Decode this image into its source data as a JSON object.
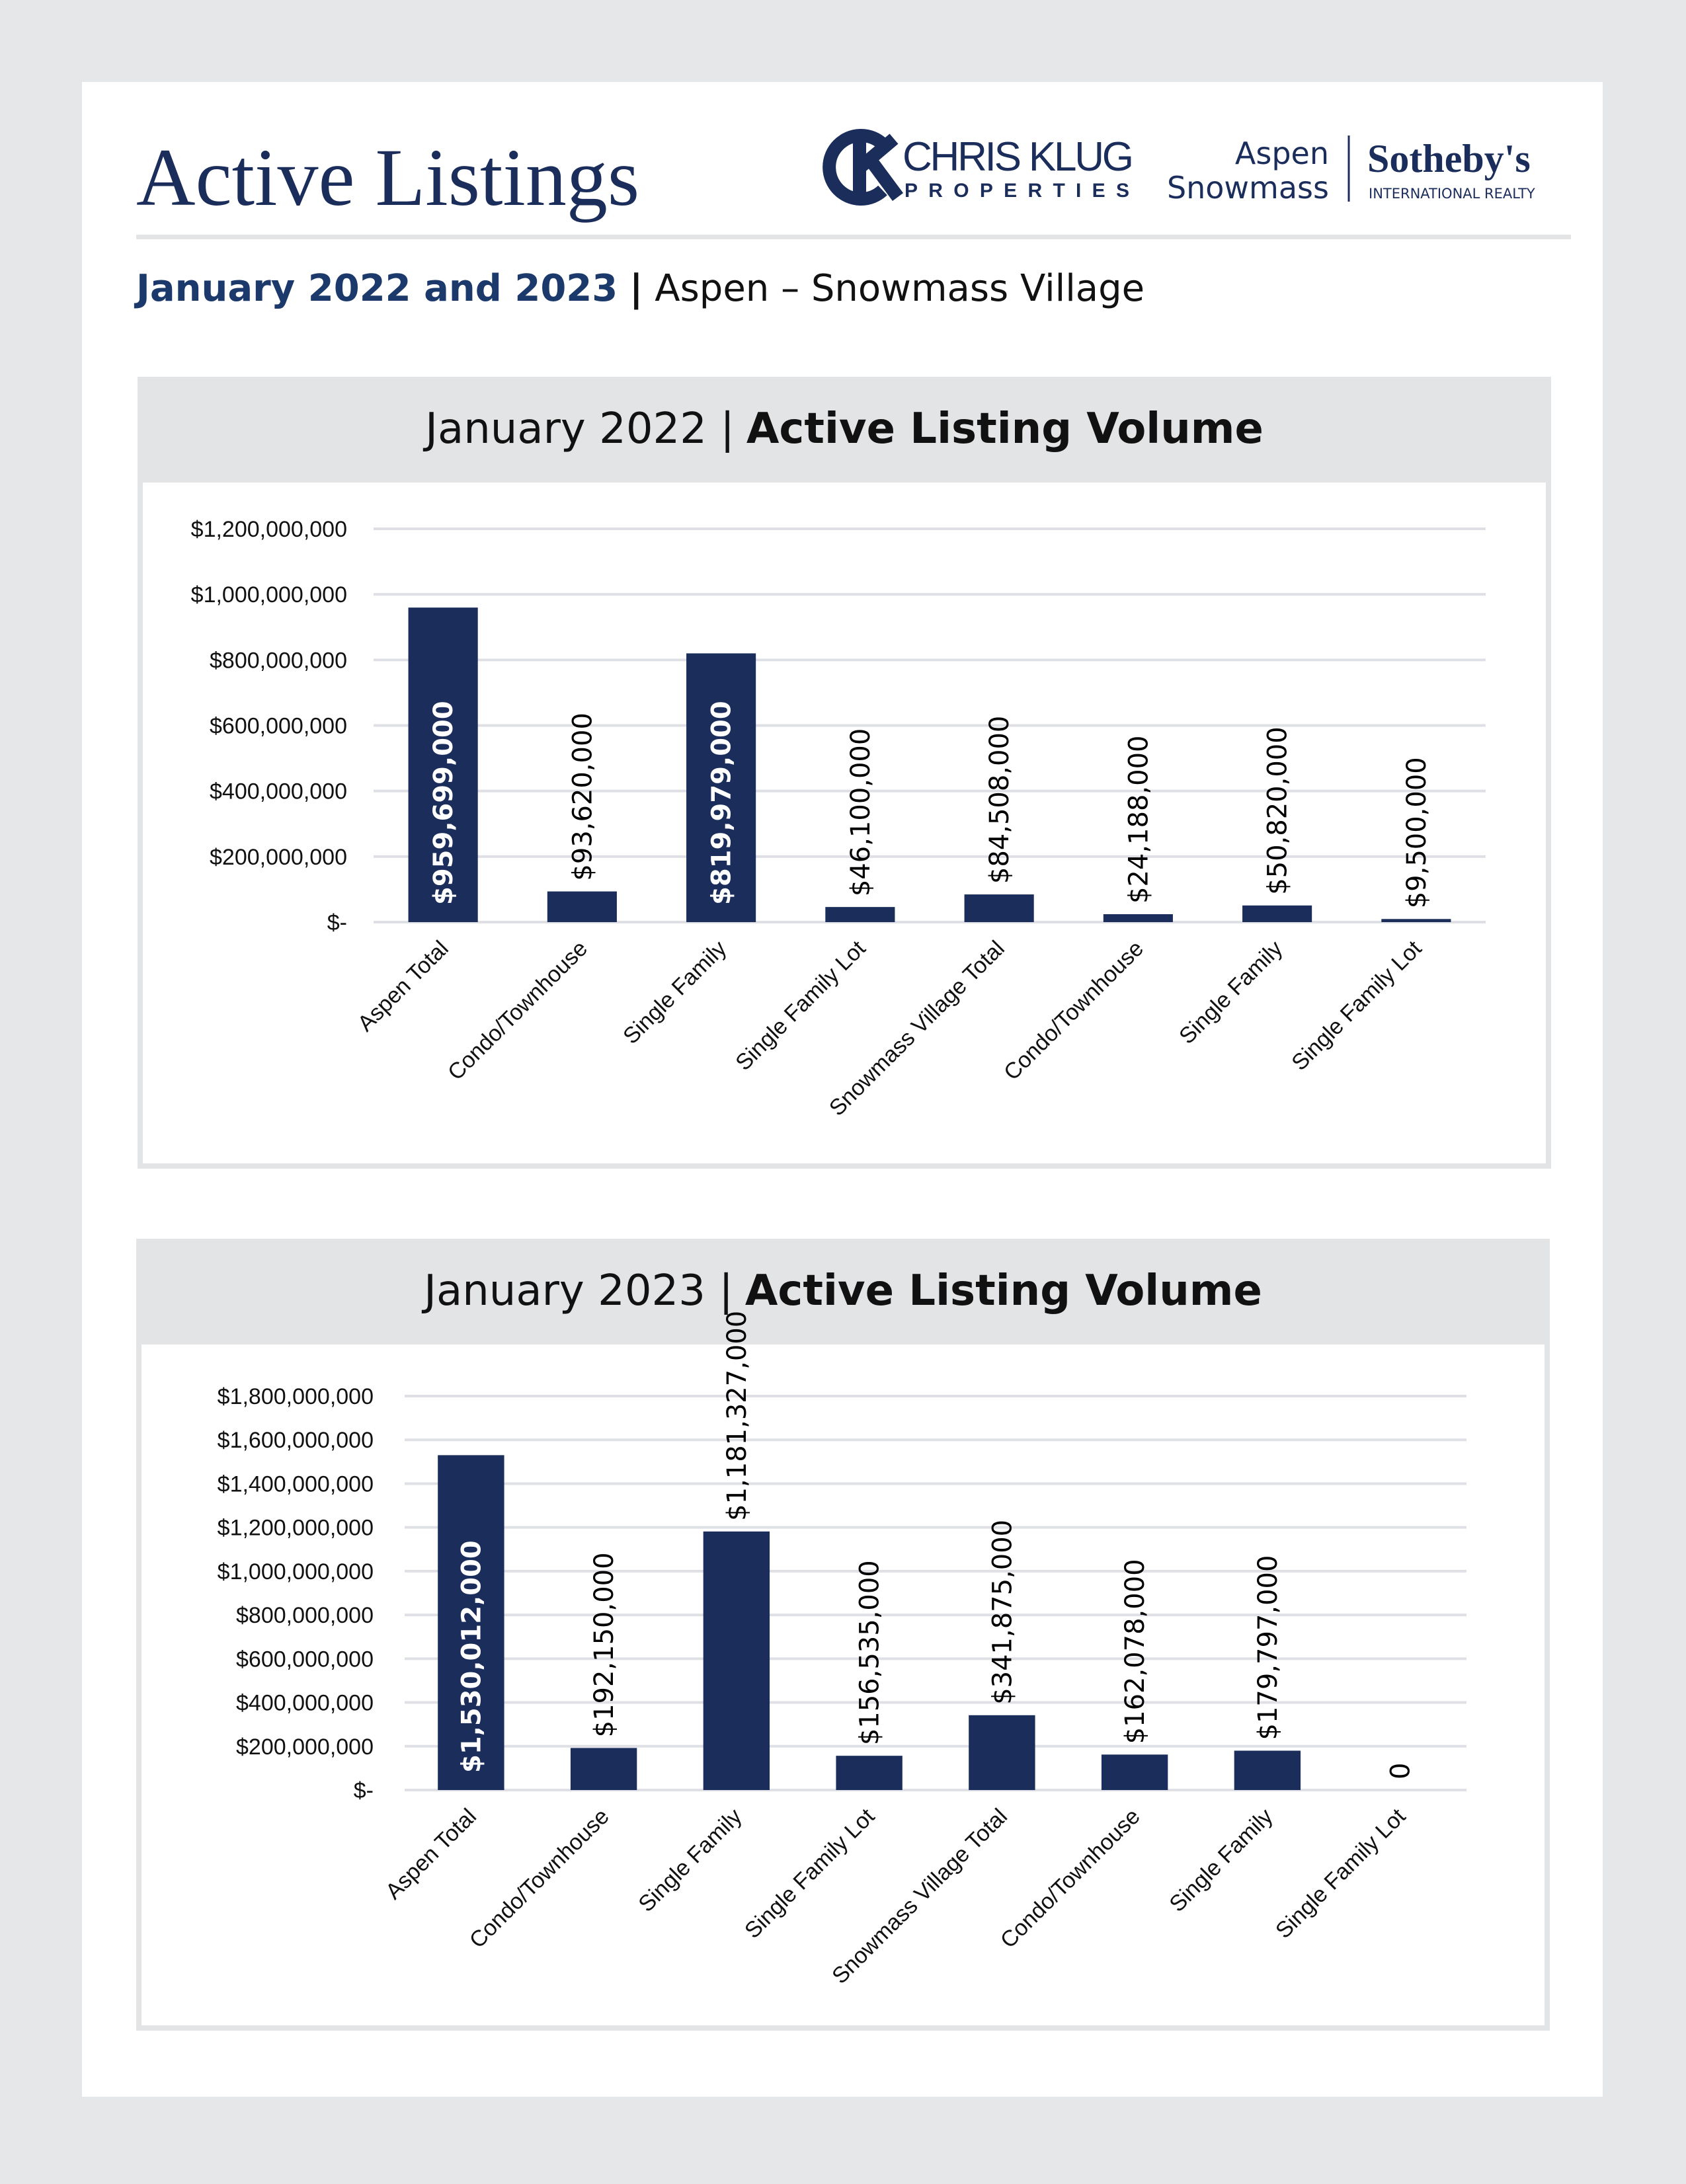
{
  "header": {
    "title": "Active Listings",
    "brand_name": "CHRIS KLUG",
    "brand_sub": "PROPERTIES",
    "partner_line1": "Aspen",
    "partner_line2": "Snowmass",
    "partner_name": "Sotheby's",
    "partner_sub": "INTERNATIONAL REALTY",
    "subtitle_bold": "January 2022 and 2023",
    "subtitle_sep": "|",
    "subtitle_rest": "Aspen – Snowmass Village"
  },
  "chart_data": [
    {
      "type": "bar",
      "title": "January 2022 |",
      "title_bold": "Active Listing Volume",
      "categories": [
        "Aspen Total",
        "Condo/Townhouse",
        "Single Family",
        "Single Family Lot",
        "Snowmass Village Total",
        "Condo/Townhouse",
        "Single Family",
        "Single Family Lot"
      ],
      "values": [
        959699000,
        93620000,
        819979000,
        46100000,
        84508000,
        24188000,
        50820000,
        9500000
      ],
      "value_labels": [
        "$959,699,000",
        "$93,620,000",
        "$819,979,000",
        "$46,100,000",
        "$84,508,000",
        "$24,188,000",
        "$50,820,000",
        "$9,500,000"
      ],
      "color": "#1b2d5b",
      "ylim": [
        0,
        1200000000
      ],
      "yticks": [
        {
          "value": 0,
          "label": "$-"
        },
        {
          "value": 200000000,
          "label": "$200,000,000"
        },
        {
          "value": 400000000,
          "label": "$400,000,000"
        },
        {
          "value": 600000000,
          "label": "$600,000,000"
        },
        {
          "value": 800000000,
          "label": "$800,000,000"
        },
        {
          "value": 1000000000,
          "label": "$1,000,000,000"
        },
        {
          "value": 1200000000,
          "label": "$1,200,000,000"
        }
      ],
      "grid": true
    },
    {
      "type": "bar",
      "title": "January 2023 |",
      "title_bold": "Active Listing Volume",
      "categories": [
        "Aspen Total",
        "Condo/Townhouse",
        "Single Family",
        "Single Family Lot",
        "Snowmass Village Total",
        "Condo/Townhouse",
        "Single Family",
        "Single Family Lot"
      ],
      "values": [
        1530012000,
        192150000,
        1181327000,
        156535000,
        341875000,
        162078000,
        179797000,
        0
      ],
      "value_labels": [
        "$1,530,012,000",
        "$192,150,000",
        "$1,181,327,000",
        "$156,535,000",
        "$341,875,000",
        "$162,078,000",
        "$179,797,000",
        "0"
      ],
      "color": "#1b2d5b",
      "ylim": [
        0,
        1800000000
      ],
      "yticks": [
        {
          "value": 0,
          "label": "$-"
        },
        {
          "value": 200000000,
          "label": "$200,000,000"
        },
        {
          "value": 400000000,
          "label": "$400,000,000"
        },
        {
          "value": 600000000,
          "label": "$600,000,000"
        },
        {
          "value": 800000000,
          "label": "$800,000,000"
        },
        {
          "value": 1000000000,
          "label": "$1,000,000,000"
        },
        {
          "value": 1200000000,
          "label": "$1,200,000,000"
        },
        {
          "value": 1400000000,
          "label": "$1,400,000,000"
        },
        {
          "value": 1600000000,
          "label": "$1,600,000,000"
        },
        {
          "value": 1800000000,
          "label": "$1,800,000,000"
        }
      ],
      "grid": true
    }
  ]
}
